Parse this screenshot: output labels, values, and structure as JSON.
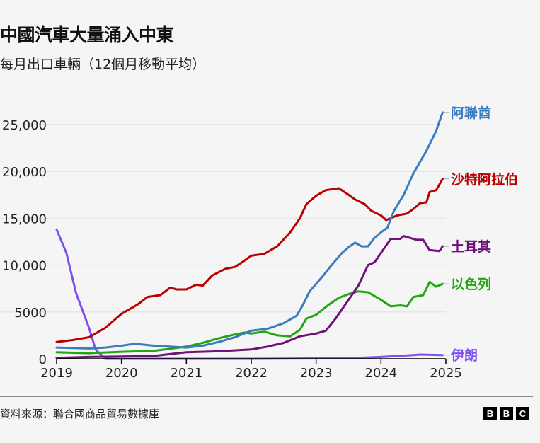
{
  "header": {
    "title": "中國汽車大量涌入中東",
    "subtitle": "每月出口車輛（12個月移動平均）"
  },
  "footer": {
    "source": "資料來源：聯合國商品貿易數據庫",
    "logo": [
      "B",
      "B",
      "C"
    ]
  },
  "chart_data": {
    "type": "line",
    "title": "中國汽車大量涌入中東",
    "subtitle": "每月出口車輛（12個月移動平均）",
    "xlabel": "",
    "ylabel": "",
    "xlim": [
      2019,
      2025
    ],
    "ylim": [
      0,
      26500
    ],
    "x_ticks": [
      "2019",
      "2020",
      "2021",
      "2022",
      "2023",
      "2024",
      "2025"
    ],
    "y_ticks": [
      {
        "value": 0,
        "label": "0"
      },
      {
        "value": 5000,
        "label": "5000"
      },
      {
        "value": 10000,
        "label": "10,000"
      },
      {
        "value": 15000,
        "label": "15,000"
      },
      {
        "value": 20000,
        "label": "20,000"
      },
      {
        "value": 25000,
        "label": "25,000"
      }
    ],
    "grid": true,
    "legend": "inline-right",
    "series": [
      {
        "name": "阿聯酋",
        "color": "#3a7cbf",
        "x": [
          2019,
          2019.5,
          2019.75,
          2020,
          2020.2,
          2020.5,
          2021,
          2021.25,
          2021.5,
          2021.75,
          2022,
          2022.25,
          2022.5,
          2022.7,
          2022.8,
          2022.9,
          2023,
          2023.1,
          2023.25,
          2023.4,
          2023.5,
          2023.6,
          2023.7,
          2023.8,
          2023.9,
          2024,
          2024.1,
          2024.2,
          2024.35,
          2024.5,
          2024.7,
          2024.85,
          2024.95
        ],
        "y": [
          1200,
          1100,
          1200,
          1400,
          1600,
          1400,
          1200,
          1400,
          1800,
          2300,
          3000,
          3200,
          3800,
          4600,
          5800,
          7200,
          8000,
          8800,
          10100,
          11300,
          11900,
          12400,
          12000,
          12000,
          12900,
          13500,
          14000,
          15800,
          17500,
          19800,
          22200,
          24300,
          26300
        ]
      },
      {
        "name": "沙特阿拉伯",
        "color": "#b80000",
        "x": [
          2019,
          2019.25,
          2019.5,
          2019.75,
          2020,
          2020.25,
          2020.4,
          2020.6,
          2020.75,
          2020.85,
          2021,
          2021.15,
          2021.25,
          2021.4,
          2021.6,
          2021.75,
          2021.9,
          2022,
          2022.2,
          2022.4,
          2022.6,
          2022.75,
          2022.85,
          2023,
          2023.15,
          2023.35,
          2023.5,
          2023.6,
          2023.75,
          2023.85,
          2024,
          2024.08,
          2024.25,
          2024.4,
          2024.5,
          2024.6,
          2024.7,
          2024.75,
          2024.85,
          2024.95
        ],
        "y": [
          1800,
          2000,
          2300,
          3300,
          4800,
          5800,
          6600,
          6800,
          7600,
          7400,
          7400,
          7900,
          7800,
          8900,
          9600,
          9800,
          10500,
          11000,
          11200,
          12000,
          13500,
          15000,
          16500,
          17400,
          18000,
          18200,
          17500,
          17000,
          16500,
          15800,
          15300,
          14800,
          15300,
          15500,
          16000,
          16600,
          16700,
          17800,
          18000,
          19200
        ]
      },
      {
        "name": "土耳其",
        "color": "#6e0f7a",
        "x": [
          2019,
          2019.5,
          2020,
          2020.5,
          2021,
          2021.5,
          2022,
          2022.25,
          2022.5,
          2022.75,
          2023,
          2023.15,
          2023.3,
          2023.5,
          2023.65,
          2023.8,
          2023.9,
          2024.05,
          2024.15,
          2024.3,
          2024.35,
          2024.55,
          2024.65,
          2024.75,
          2024.9,
          2024.95
        ],
        "y": [
          100,
          200,
          250,
          300,
          700,
          800,
          1000,
          1300,
          1700,
          2400,
          2700,
          3000,
          4300,
          6300,
          7800,
          10000,
          10300,
          11800,
          12800,
          12800,
          13100,
          12700,
          12700,
          11600,
          11500,
          12000
        ]
      },
      {
        "name": "以色列",
        "color": "#22a614",
        "x": [
          2019,
          2019.5,
          2020,
          2020.5,
          2021,
          2021.25,
          2021.5,
          2021.75,
          2021.9,
          2022,
          2022.2,
          2022.4,
          2022.6,
          2022.75,
          2022.85,
          2023,
          2023.2,
          2023.35,
          2023.5,
          2023.65,
          2023.8,
          2024,
          2024.15,
          2024.3,
          2024.4,
          2024.5,
          2024.65,
          2024.75,
          2024.85,
          2024.95
        ],
        "y": [
          700,
          600,
          750,
          850,
          1300,
          1700,
          2200,
          2600,
          2800,
          2700,
          2900,
          2500,
          2400,
          3100,
          4300,
          4700,
          5800,
          6500,
          6900,
          7200,
          7100,
          6300,
          5600,
          5700,
          5600,
          6600,
          6800,
          8200,
          7700,
          8000
        ]
      },
      {
        "name": "伊朗",
        "color": "#7f50ee",
        "x": [
          2019,
          2019.15,
          2019.3,
          2019.5,
          2019.6,
          2019.75,
          2022,
          2023.5,
          2024,
          2024.5,
          2024.6,
          2024.95
        ],
        "y": [
          13800,
          11300,
          7000,
          3300,
          1000,
          0,
          0,
          50,
          200,
          400,
          450,
          400
        ]
      }
    ]
  }
}
